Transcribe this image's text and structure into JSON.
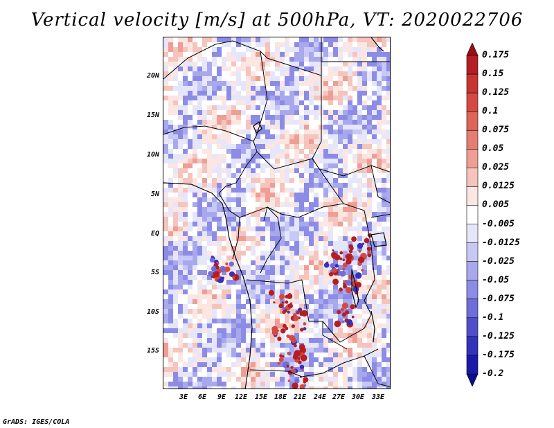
{
  "title": "Vertical velocity [m/s] at 500hPa, VT: 2020022706",
  "credit": "GrADS: IGES/COLA",
  "map": {
    "region": "Central Africa",
    "variable": "Vertical velocity",
    "units": "m/s",
    "level": "500hPa",
    "valid_time": "2020022706",
    "lat_labels": [
      "20N",
      "15N",
      "10N",
      "5N",
      "EQ",
      "5S",
      "10S",
      "15S"
    ],
    "lon_labels": [
      "3E",
      "6E",
      "9E",
      "12E",
      "15E",
      "18E",
      "21E",
      "24E",
      "27E",
      "30E",
      "33E"
    ]
  },
  "colorbar": {
    "labels": [
      "0.175",
      "0.15",
      "0.125",
      "0.1",
      "0.075",
      "0.05",
      "0.025",
      "0.0125",
      "0.005",
      "-0.005",
      "-0.0125",
      "-0.025",
      "-0.05",
      "-0.075",
      "-0.1",
      "-0.125",
      "-0.175",
      "-0.2"
    ],
    "colors": [
      "#9b0e14",
      "#b41e22",
      "#c8342f",
      "#d44a43",
      "#de6358",
      "#e67d72",
      "#ee9e94",
      "#f5c4bd",
      "#fbe6e2",
      "#ffffff",
      "#e6e6fb",
      "#c8c8f5",
      "#a8a8ee",
      "#8c8ce6",
      "#6e6edb",
      "#4f4fcd",
      "#3232bb",
      "#1a1aa8",
      "#0c0c8f"
    ]
  }
}
